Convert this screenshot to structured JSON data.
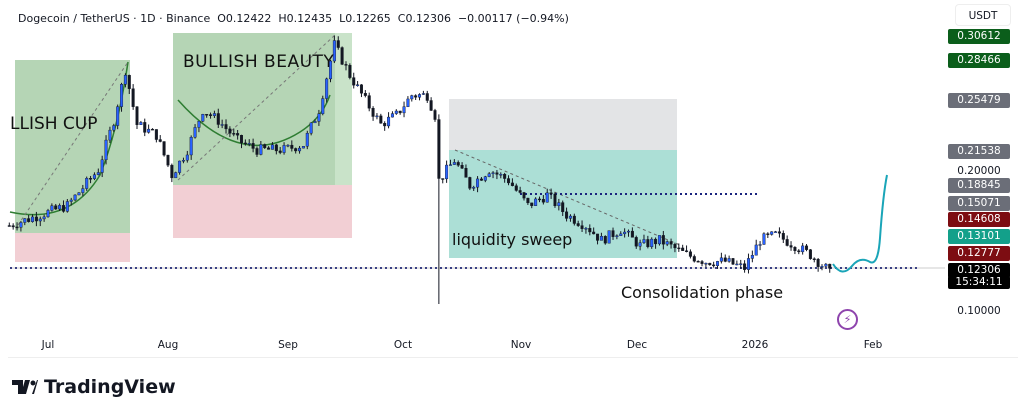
{
  "header": {
    "symbol": "Dogecoin / TetherUS · 1D · Binance",
    "open": "O0.12422",
    "high": "H0.12435",
    "low": "L0.12265",
    "close": "C0.12306",
    "change": "−0.00117 (−0.94%)"
  },
  "currency_button": "USDT",
  "price_labels": [
    {
      "text": "0.30612",
      "color": "#0b5e1b"
    },
    {
      "text": "0.28466",
      "color": "#0b5e1b"
    },
    {
      "text": "0.25479",
      "color": "#6b6e78"
    },
    {
      "text": "0.21538",
      "color": "#6b6e78"
    },
    {
      "text": "0.20000",
      "color": ""
    },
    {
      "text": "0.18845",
      "color": "#6b6e78"
    },
    {
      "text": "0.15071",
      "color": "#6b6e78"
    },
    {
      "text": "0.14608",
      "color": "#7d0d12"
    },
    {
      "text": "0.13101",
      "color": "#13a08a"
    },
    {
      "text": "0.12777",
      "color": "#7d0d12"
    },
    {
      "text": "0.12306",
      "color": "#000000"
    },
    {
      "text": "0.10000",
      "color": ""
    }
  ],
  "countdown": "15:34:11",
  "time_labels": [
    "Jul",
    "Aug",
    "Sep",
    "Oct",
    "Nov",
    "Dec",
    "2026",
    "Feb"
  ],
  "annotations": {
    "cup": "LLISH CUP",
    "beauty": "BULLISH BEAUTY",
    "sweep": "liquidity sweep",
    "consolidation": "Consolidation phase"
  },
  "brand": "TradingView",
  "chart_data": {
    "type": "candlestick",
    "y_scale": "price (USDT)",
    "ylim": [
      0.1,
      0.31
    ],
    "up_color": "#2962ff",
    "down_color": "#131722",
    "close_path": [
      [
        "2025-06-21",
        0.159
      ],
      [
        "2025-06-29",
        0.167
      ],
      [
        "2025-07-06",
        0.174
      ],
      [
        "2025-07-14",
        0.201
      ],
      [
        "2025-07-18",
        0.238
      ],
      [
        "2025-07-21",
        0.276
      ],
      [
        "2025-07-24",
        0.235
      ],
      [
        "2025-07-29",
        0.227
      ],
      [
        "2025-08-02",
        0.197
      ],
      [
        "2025-08-06",
        0.216
      ],
      [
        "2025-08-10",
        0.246
      ],
      [
        "2025-08-14",
        0.238
      ],
      [
        "2025-08-19",
        0.223
      ],
      [
        "2025-08-24",
        0.216
      ],
      [
        "2025-08-31",
        0.216
      ],
      [
        "2025-09-05",
        0.22
      ],
      [
        "2025-09-09",
        0.246
      ],
      [
        "2025-09-13",
        0.295
      ],
      [
        "2025-09-17",
        0.272
      ],
      [
        "2025-09-21",
        0.253
      ],
      [
        "2025-09-25",
        0.235
      ],
      [
        "2025-09-29",
        0.242
      ],
      [
        "2025-10-03",
        0.257
      ],
      [
        "2025-10-07",
        0.257
      ],
      [
        "2025-10-09",
        0.242
      ],
      [
        "2025-10-10",
        0.193
      ],
      [
        "2025-10-14",
        0.208
      ],
      [
        "2025-10-18",
        0.189
      ],
      [
        "2025-10-23",
        0.201
      ],
      [
        "2025-10-28",
        0.193
      ],
      [
        "2025-11-02",
        0.174
      ],
      [
        "2025-11-07",
        0.182
      ],
      [
        "2025-11-12",
        0.167
      ],
      [
        "2025-11-17",
        0.159
      ],
      [
        "2025-11-21",
        0.148
      ],
      [
        "2025-11-26",
        0.156
      ],
      [
        "2025-12-01",
        0.144
      ],
      [
        "2025-12-06",
        0.148
      ],
      [
        "2025-12-13",
        0.137
      ],
      [
        "2025-12-18",
        0.132
      ],
      [
        "2025-12-23",
        0.132
      ],
      [
        "2025-12-28",
        0.127
      ],
      [
        "2026-01-01",
        0.148
      ],
      [
        "2026-01-05",
        0.152
      ],
      [
        "2026-01-10",
        0.144
      ],
      [
        "2026-01-14",
        0.137
      ],
      [
        "2026-01-18",
        0.127
      ],
      [
        "2026-01-19",
        0.123
      ]
    ],
    "crash_low": [
      "2025-10-10",
      0.1
    ]
  }
}
